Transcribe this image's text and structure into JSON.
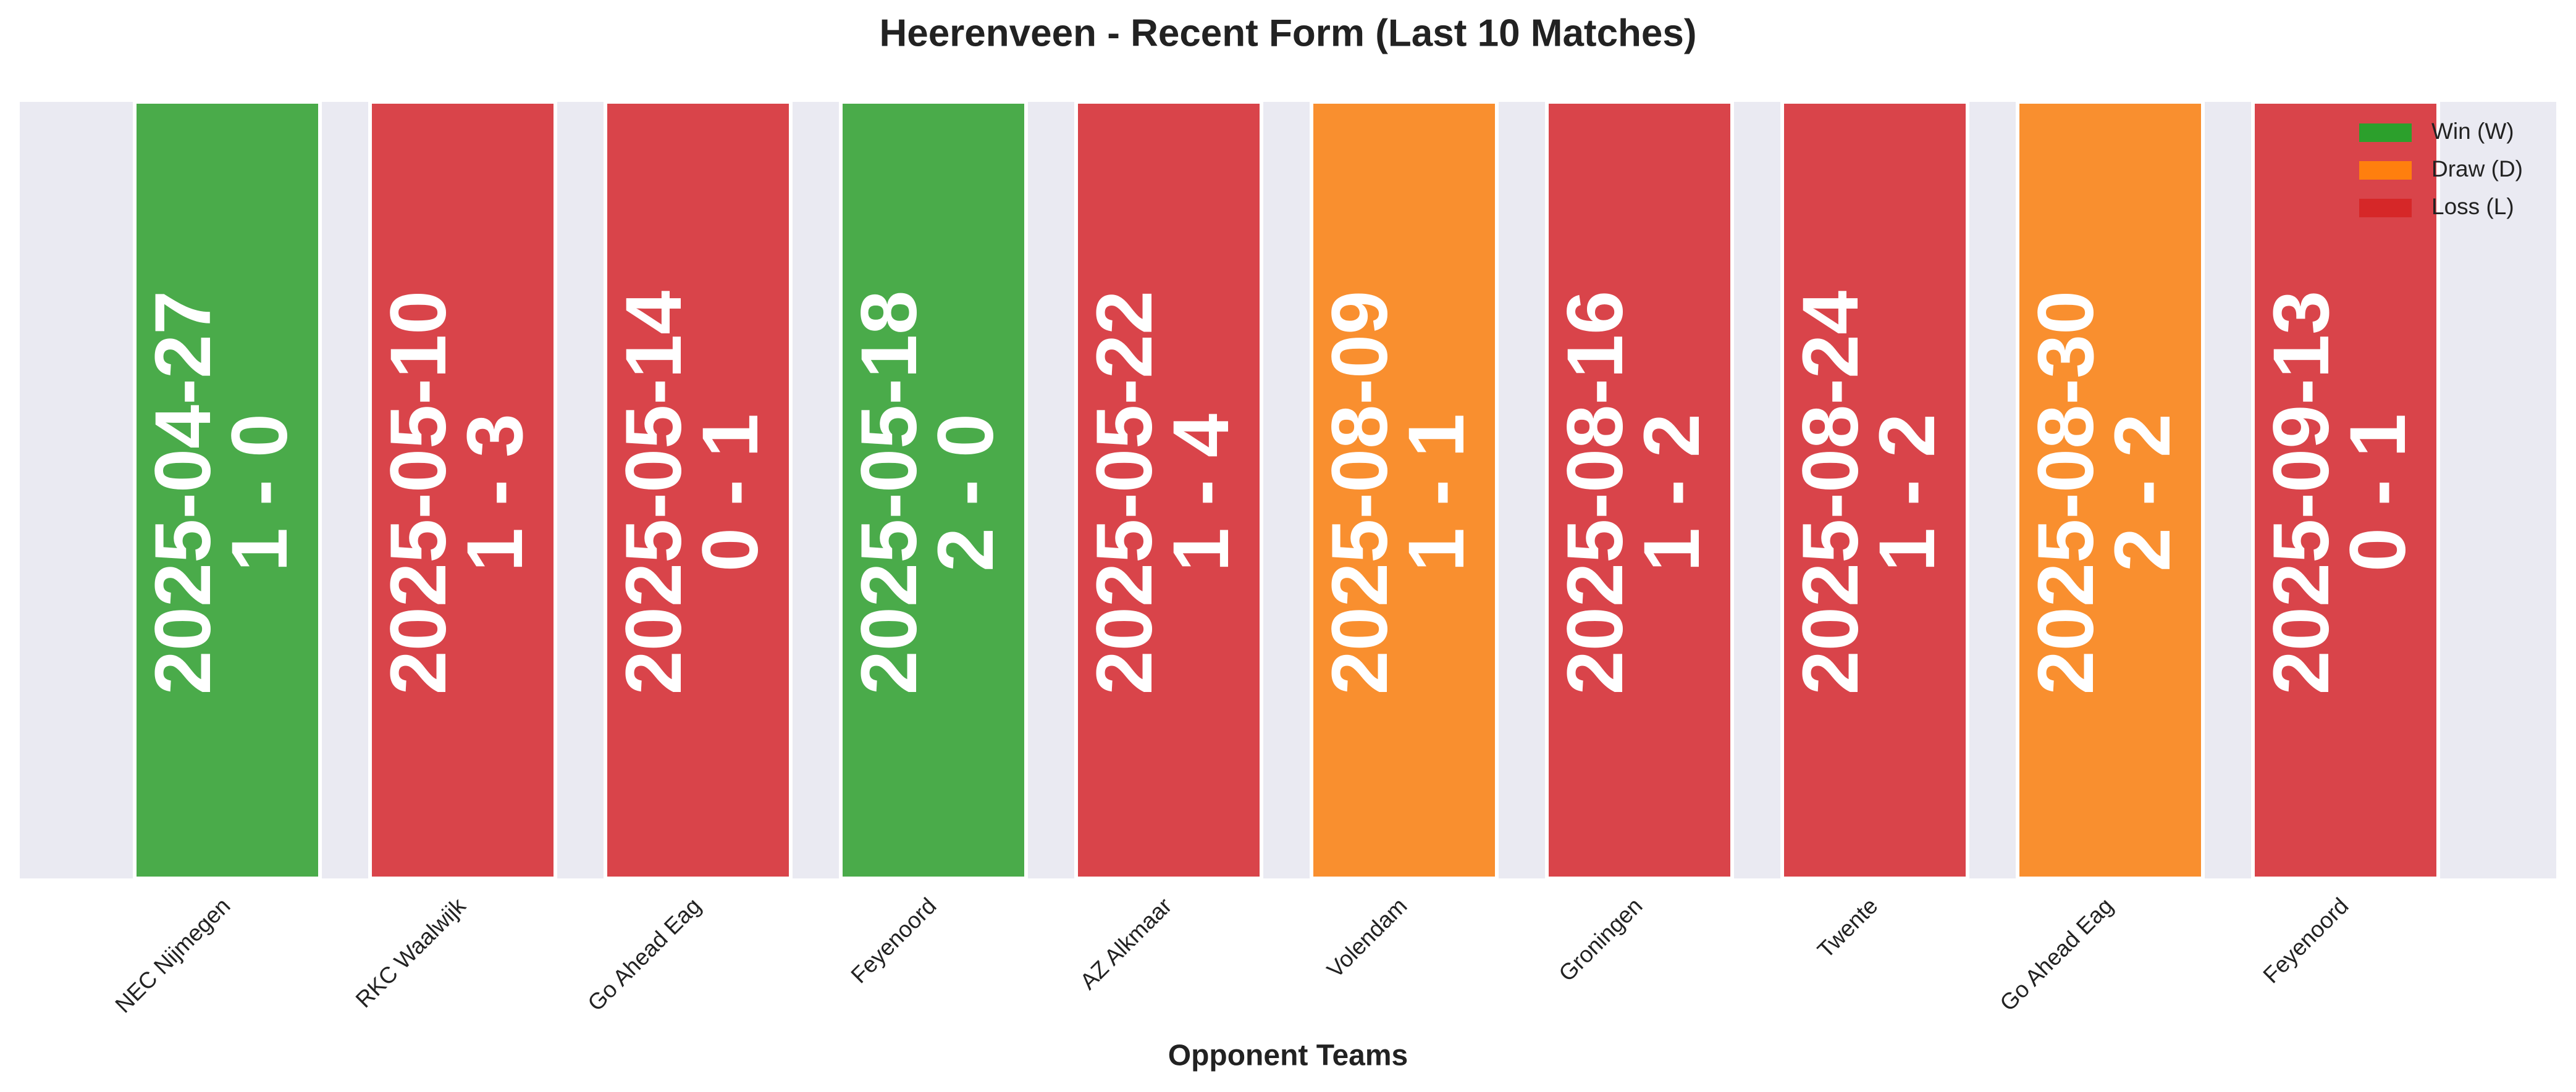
{
  "chart_data": {
    "type": "bar",
    "title": "Heerenveen - Recent Form (Last 10 Matches)",
    "x_label": "Opponent Teams",
    "categories": [
      "NEC Nijmegen",
      "RKC Waalwijk",
      "Go Ahead Eag",
      "Feyenoord",
      "AZ Alkmaar",
      "Volendam",
      "Groningen",
      "Twente",
      "Go Ahead Eag",
      "Feyenoord"
    ],
    "dates": [
      "2025-04-27",
      "2025-05-10",
      "2025-05-14",
      "2025-05-18",
      "2025-05-22",
      "2025-08-09",
      "2025-08-16",
      "2025-08-24",
      "2025-08-30",
      "2025-09-13"
    ],
    "scores": [
      "1 - 0",
      "1 - 3",
      "0 - 1",
      "2 - 0",
      "1 - 4",
      "1 - 1",
      "1 - 2",
      "1 - 2",
      "2 - 2",
      "0 - 1"
    ],
    "colors": [
      "#4aab4a",
      "#d9444a",
      "#d9444a",
      "#4aab4a",
      "#d9444a",
      "#f98f2f",
      "#d9444a",
      "#d9444a",
      "#f98f2f",
      "#d9444a"
    ],
    "legend_position": "upper right",
    "legend": [
      {
        "name": "Win (W)",
        "color": "#2ca02c"
      },
      {
        "name": "Draw (D)",
        "color": "#ff7f0e"
      },
      {
        "name": "Loss (L)",
        "color": "#d62728"
      }
    ]
  }
}
